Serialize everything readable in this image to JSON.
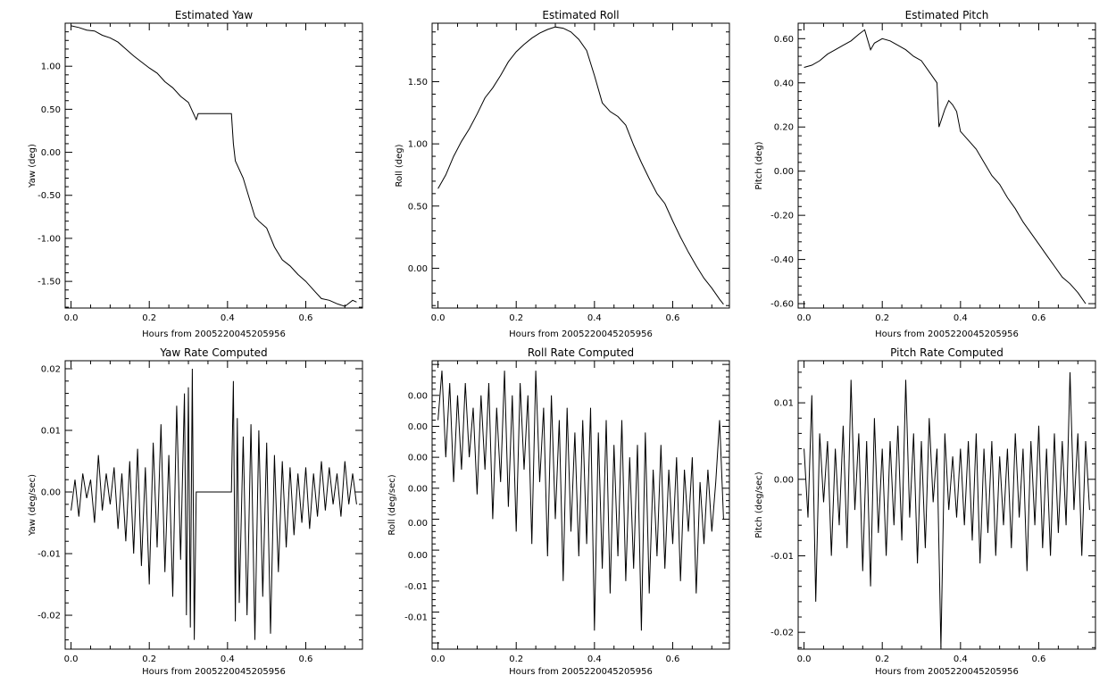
{
  "colors": {
    "background": "#ffffff",
    "line": "#000000"
  },
  "chart_data": [
    {
      "id": "estimated-yaw",
      "type": "line",
      "title": "Estimated Yaw",
      "xlabel": "Hours from 2005220045205956",
      "ylabel": "Yaw (deg)",
      "xlim": [
        -0.015,
        0.745
      ],
      "ylim": [
        -1.81,
        1.5
      ],
      "xticks": [
        {
          "v": 0.0,
          "label": "0.0"
        },
        {
          "v": 0.2,
          "label": "0.2"
        },
        {
          "v": 0.4,
          "label": "0.4"
        },
        {
          "v": 0.6,
          "label": "0.6"
        }
      ],
      "yticks": [
        {
          "v": 1.0,
          "label": "1.00"
        },
        {
          "v": 0.5,
          "label": "0.50"
        },
        {
          "v": 0.0,
          "label": "0.00"
        },
        {
          "v": -0.5,
          "label": "-0.50"
        },
        {
          "v": -1.0,
          "label": "-1.00"
        },
        {
          "v": -1.5,
          "label": "-1.50"
        }
      ],
      "grid": false,
      "x": [
        0.0,
        0.02,
        0.04,
        0.06,
        0.08,
        0.1,
        0.12,
        0.14,
        0.16,
        0.18,
        0.2,
        0.22,
        0.24,
        0.26,
        0.28,
        0.3,
        0.31,
        0.32,
        0.325,
        0.4,
        0.41,
        0.415,
        0.42,
        0.44,
        0.46,
        0.47,
        0.48,
        0.5,
        0.52,
        0.54,
        0.56,
        0.58,
        0.6,
        0.62,
        0.64,
        0.66,
        0.68,
        0.7,
        0.72,
        0.73
      ],
      "y": [
        1.47,
        1.45,
        1.42,
        1.41,
        1.36,
        1.33,
        1.28,
        1.2,
        1.12,
        1.05,
        0.98,
        0.92,
        0.82,
        0.75,
        0.65,
        0.58,
        0.48,
        0.38,
        0.45,
        0.45,
        0.45,
        0.1,
        -0.1,
        -0.3,
        -0.6,
        -0.75,
        -0.8,
        -0.88,
        -1.1,
        -1.25,
        -1.32,
        -1.42,
        -1.5,
        -1.6,
        -1.7,
        -1.72,
        -1.76,
        -1.79,
        -1.72,
        -1.74
      ]
    },
    {
      "id": "estimated-roll",
      "type": "line",
      "title": "Estimated Roll",
      "xlabel": "Hours from 2005220045205956",
      "ylabel": "Roll (deg)",
      "xlim": [
        -0.015,
        0.745
      ],
      "ylim": [
        -0.32,
        1.97
      ],
      "xticks": [
        {
          "v": 0.0,
          "label": "0.0"
        },
        {
          "v": 0.2,
          "label": "0.2"
        },
        {
          "v": 0.4,
          "label": "0.4"
        },
        {
          "v": 0.6,
          "label": "0.6"
        }
      ],
      "yticks": [
        {
          "v": 1.5,
          "label": "1.50"
        },
        {
          "v": 1.0,
          "label": "1.00"
        },
        {
          "v": 0.5,
          "label": "0.50"
        },
        {
          "v": 0.0,
          "label": "0.00"
        }
      ],
      "grid": false,
      "x": [
        0.0,
        0.02,
        0.04,
        0.06,
        0.08,
        0.1,
        0.12,
        0.14,
        0.16,
        0.18,
        0.2,
        0.22,
        0.24,
        0.26,
        0.28,
        0.3,
        0.32,
        0.34,
        0.36,
        0.38,
        0.4,
        0.42,
        0.44,
        0.46,
        0.48,
        0.5,
        0.52,
        0.54,
        0.56,
        0.58,
        0.6,
        0.62,
        0.64,
        0.66,
        0.68,
        0.7,
        0.72,
        0.73
      ],
      "y": [
        0.64,
        0.75,
        0.9,
        1.02,
        1.12,
        1.24,
        1.37,
        1.45,
        1.55,
        1.66,
        1.74,
        1.8,
        1.85,
        1.89,
        1.92,
        1.94,
        1.93,
        1.9,
        1.84,
        1.75,
        1.55,
        1.33,
        1.26,
        1.22,
        1.15,
        0.99,
        0.85,
        0.72,
        0.6,
        0.52,
        0.38,
        0.25,
        0.13,
        0.02,
        -0.08,
        -0.16,
        -0.25,
        -0.29
      ]
    },
    {
      "id": "estimated-pitch",
      "type": "line",
      "title": "Estimated Pitch",
      "xlabel": "Hours from 2005220045205956",
      "ylabel": "Pitch (deg)",
      "xlim": [
        -0.015,
        0.745
      ],
      "ylim": [
        -0.62,
        0.67
      ],
      "xticks": [
        {
          "v": 0.0,
          "label": "0.0"
        },
        {
          "v": 0.2,
          "label": "0.2"
        },
        {
          "v": 0.4,
          "label": "0.4"
        },
        {
          "v": 0.6,
          "label": "0.6"
        }
      ],
      "yticks": [
        {
          "v": 0.6,
          "label": "0.60"
        },
        {
          "v": 0.4,
          "label": "0.40"
        },
        {
          "v": 0.2,
          "label": "0.20"
        },
        {
          "v": 0.0,
          "label": "0.00"
        },
        {
          "v": -0.2,
          "label": "-0.20"
        },
        {
          "v": -0.4,
          "label": "-0.40"
        },
        {
          "v": -0.6,
          "label": "-0.60"
        }
      ],
      "grid": false,
      "x": [
        0.0,
        0.02,
        0.04,
        0.06,
        0.08,
        0.1,
        0.12,
        0.14,
        0.155,
        0.17,
        0.18,
        0.2,
        0.22,
        0.24,
        0.26,
        0.28,
        0.3,
        0.32,
        0.34,
        0.345,
        0.36,
        0.37,
        0.38,
        0.39,
        0.4,
        0.42,
        0.44,
        0.46,
        0.48,
        0.5,
        0.52,
        0.54,
        0.56,
        0.58,
        0.6,
        0.62,
        0.64,
        0.66,
        0.68,
        0.7,
        0.72
      ],
      "y": [
        0.47,
        0.48,
        0.5,
        0.53,
        0.55,
        0.57,
        0.59,
        0.62,
        0.64,
        0.55,
        0.58,
        0.6,
        0.59,
        0.57,
        0.55,
        0.52,
        0.5,
        0.45,
        0.4,
        0.2,
        0.28,
        0.32,
        0.3,
        0.27,
        0.18,
        0.14,
        0.1,
        0.04,
        -0.02,
        -0.06,
        -0.12,
        -0.17,
        -0.23,
        -0.28,
        -0.33,
        -0.38,
        -0.43,
        -0.48,
        -0.51,
        -0.55,
        -0.6
      ]
    },
    {
      "id": "yaw-rate",
      "type": "line",
      "title": "Yaw Rate Computed",
      "xlabel": "Hours from 2005220045205956",
      "ylabel": "Yaw (deg/sec)",
      "xlim": [
        -0.015,
        0.745
      ],
      "ylim": [
        -0.0255,
        0.0213
      ],
      "xticks": [
        {
          "v": 0.0,
          "label": "0.0"
        },
        {
          "v": 0.2,
          "label": "0.2"
        },
        {
          "v": 0.4,
          "label": "0.4"
        },
        {
          "v": 0.6,
          "label": "0.6"
        }
      ],
      "yticks": [
        {
          "v": 0.02,
          "label": "0.02"
        },
        {
          "v": 0.01,
          "label": "0.01"
        },
        {
          "v": 0.0,
          "label": "0.00"
        },
        {
          "v": -0.01,
          "label": "-0.01"
        },
        {
          "v": -0.02,
          "label": "-0.02"
        }
      ],
      "grid": false,
      "x": [
        0.0,
        0.01,
        0.02,
        0.03,
        0.04,
        0.05,
        0.06,
        0.07,
        0.08,
        0.09,
        0.1,
        0.11,
        0.12,
        0.13,
        0.14,
        0.15,
        0.16,
        0.17,
        0.18,
        0.19,
        0.2,
        0.21,
        0.22,
        0.23,
        0.24,
        0.25,
        0.26,
        0.27,
        0.28,
        0.29,
        0.295,
        0.3,
        0.305,
        0.31,
        0.315,
        0.32,
        0.325,
        0.41,
        0.415,
        0.42,
        0.425,
        0.43,
        0.44,
        0.45,
        0.46,
        0.47,
        0.48,
        0.49,
        0.5,
        0.51,
        0.52,
        0.53,
        0.54,
        0.55,
        0.56,
        0.57,
        0.58,
        0.59,
        0.6,
        0.61,
        0.62,
        0.63,
        0.64,
        0.65,
        0.66,
        0.67,
        0.68,
        0.69,
        0.7,
        0.71,
        0.72,
        0.73
      ],
      "y": [
        -0.003,
        0.002,
        -0.004,
        0.003,
        -0.001,
        0.002,
        -0.005,
        0.006,
        -0.003,
        0.003,
        -0.002,
        0.004,
        -0.006,
        0.003,
        -0.008,
        0.005,
        -0.01,
        0.007,
        -0.012,
        0.004,
        -0.015,
        0.008,
        -0.009,
        0.011,
        -0.013,
        0.006,
        -0.017,
        0.014,
        -0.011,
        0.016,
        -0.02,
        0.017,
        -0.022,
        0.02,
        -0.024,
        0.0,
        0.0,
        0.0,
        0.018,
        -0.021,
        0.012,
        -0.018,
        0.009,
        -0.02,
        0.011,
        -0.024,
        0.01,
        -0.017,
        0.008,
        -0.023,
        0.006,
        -0.013,
        0.005,
        -0.009,
        0.004,
        -0.007,
        0.003,
        -0.005,
        0.004,
        -0.006,
        0.003,
        -0.004,
        0.005,
        -0.003,
        0.004,
        -0.002,
        0.003,
        -0.004,
        0.005,
        -0.002,
        0.003,
        -0.002
      ]
    },
    {
      "id": "roll-rate",
      "type": "line",
      "title": "Roll Rate Computed",
      "xlabel": "Hours from 2005220045205956",
      "ylabel": "Roll (deg/sec)",
      "xlim": [
        -0.015,
        0.745
      ],
      "ylim": [
        -0.0165,
        0.0068
      ],
      "xticks": [
        {
          "v": 0.0,
          "label": "0.0"
        },
        {
          "v": 0.2,
          "label": "0.2"
        },
        {
          "v": 0.4,
          "label": "0.4"
        },
        {
          "v": 0.6,
          "label": "0.6"
        }
      ],
      "yticks": [
        {
          "v": 0.004,
          "label": "0.00"
        },
        {
          "v": 0.0015,
          "label": "0.00"
        },
        {
          "v": -0.001,
          "label": "0.00"
        },
        {
          "v": -0.0035,
          "label": "0.00"
        },
        {
          "v": -0.0063,
          "label": "0.00"
        },
        {
          "v": -0.0089,
          "label": "0.00"
        },
        {
          "v": -0.0114,
          "label": "-0.01"
        },
        {
          "v": -0.0139,
          "label": "-0.01"
        }
      ],
      "grid": false,
      "x": [
        0.0,
        0.01,
        0.02,
        0.03,
        0.04,
        0.05,
        0.06,
        0.07,
        0.08,
        0.09,
        0.1,
        0.11,
        0.12,
        0.13,
        0.14,
        0.15,
        0.16,
        0.17,
        0.18,
        0.19,
        0.2,
        0.21,
        0.22,
        0.23,
        0.24,
        0.25,
        0.26,
        0.27,
        0.28,
        0.29,
        0.3,
        0.31,
        0.32,
        0.33,
        0.34,
        0.35,
        0.36,
        0.37,
        0.38,
        0.39,
        0.4,
        0.41,
        0.42,
        0.43,
        0.44,
        0.45,
        0.46,
        0.47,
        0.48,
        0.49,
        0.5,
        0.51,
        0.52,
        0.53,
        0.54,
        0.55,
        0.56,
        0.57,
        0.58,
        0.59,
        0.6,
        0.61,
        0.62,
        0.63,
        0.64,
        0.65,
        0.66,
        0.67,
        0.68,
        0.69,
        0.7,
        0.71,
        0.72,
        0.73
      ],
      "y": [
        0.002,
        0.006,
        -0.001,
        0.005,
        -0.003,
        0.004,
        -0.002,
        0.005,
        -0.001,
        0.003,
        -0.004,
        0.004,
        -0.002,
        0.005,
        -0.006,
        0.003,
        -0.003,
        0.006,
        -0.005,
        0.004,
        -0.007,
        0.005,
        -0.002,
        0.004,
        -0.008,
        0.006,
        -0.003,
        0.003,
        -0.009,
        0.004,
        -0.006,
        0.002,
        -0.011,
        0.003,
        -0.007,
        0.001,
        -0.009,
        0.002,
        -0.008,
        0.003,
        -0.015,
        0.001,
        -0.01,
        0.002,
        -0.012,
        0.0,
        -0.009,
        0.002,
        -0.011,
        -0.001,
        -0.01,
        0.0,
        -0.015,
        0.001,
        -0.012,
        -0.002,
        -0.009,
        0.0,
        -0.01,
        -0.002,
        -0.008,
        -0.001,
        -0.011,
        -0.002,
        -0.007,
        -0.001,
        -0.012,
        -0.003,
        -0.008,
        -0.002,
        -0.007,
        -0.003,
        0.002,
        -0.006
      ]
    },
    {
      "id": "pitch-rate",
      "type": "line",
      "title": "Pitch Rate Computed",
      "xlabel": "Hours from 2005220045205956",
      "ylabel": "Pitch (deg/sec)",
      "xlim": [
        -0.015,
        0.745
      ],
      "ylim": [
        -0.0222,
        0.0155
      ],
      "xticks": [
        {
          "v": 0.0,
          "label": "0.0"
        },
        {
          "v": 0.2,
          "label": "0.2"
        },
        {
          "v": 0.4,
          "label": "0.4"
        },
        {
          "v": 0.6,
          "label": "0.6"
        }
      ],
      "yticks": [
        {
          "v": 0.01,
          "label": "0.01"
        },
        {
          "v": 0.0,
          "label": "0.00"
        },
        {
          "v": -0.01,
          "label": "-0.01"
        },
        {
          "v": -0.02,
          "label": "-0.02"
        }
      ],
      "grid": false,
      "x": [
        0.0,
        0.01,
        0.02,
        0.03,
        0.04,
        0.05,
        0.06,
        0.07,
        0.08,
        0.09,
        0.1,
        0.11,
        0.12,
        0.13,
        0.14,
        0.15,
        0.16,
        0.17,
        0.18,
        0.19,
        0.2,
        0.21,
        0.22,
        0.23,
        0.24,
        0.25,
        0.26,
        0.27,
        0.28,
        0.29,
        0.3,
        0.31,
        0.32,
        0.33,
        0.34,
        0.35,
        0.36,
        0.37,
        0.38,
        0.39,
        0.4,
        0.41,
        0.42,
        0.43,
        0.44,
        0.45,
        0.46,
        0.47,
        0.48,
        0.49,
        0.5,
        0.51,
        0.52,
        0.53,
        0.54,
        0.55,
        0.56,
        0.57,
        0.58,
        0.59,
        0.6,
        0.61,
        0.62,
        0.63,
        0.64,
        0.65,
        0.66,
        0.67,
        0.68,
        0.69,
        0.7,
        0.71,
        0.72,
        0.73
      ],
      "y": [
        0.004,
        -0.005,
        0.011,
        -0.016,
        0.006,
        -0.003,
        0.005,
        -0.01,
        0.004,
        -0.006,
        0.007,
        -0.009,
        0.013,
        -0.004,
        0.006,
        -0.012,
        0.005,
        -0.014,
        0.008,
        -0.007,
        0.004,
        -0.01,
        0.005,
        -0.006,
        0.007,
        -0.008,
        0.013,
        -0.005,
        0.006,
        -0.011,
        0.005,
        -0.009,
        0.008,
        -0.003,
        0.004,
        -0.022,
        0.006,
        -0.004,
        0.003,
        -0.005,
        0.004,
        -0.006,
        0.005,
        -0.008,
        0.006,
        -0.011,
        0.004,
        -0.007,
        0.005,
        -0.01,
        0.003,
        -0.006,
        0.004,
        -0.009,
        0.006,
        -0.005,
        0.004,
        -0.012,
        0.005,
        -0.006,
        0.007,
        -0.009,
        0.004,
        -0.01,
        0.006,
        -0.007,
        0.005,
        -0.006,
        0.014,
        -0.004,
        0.006,
        -0.01,
        0.005,
        -0.004
      ]
    }
  ]
}
